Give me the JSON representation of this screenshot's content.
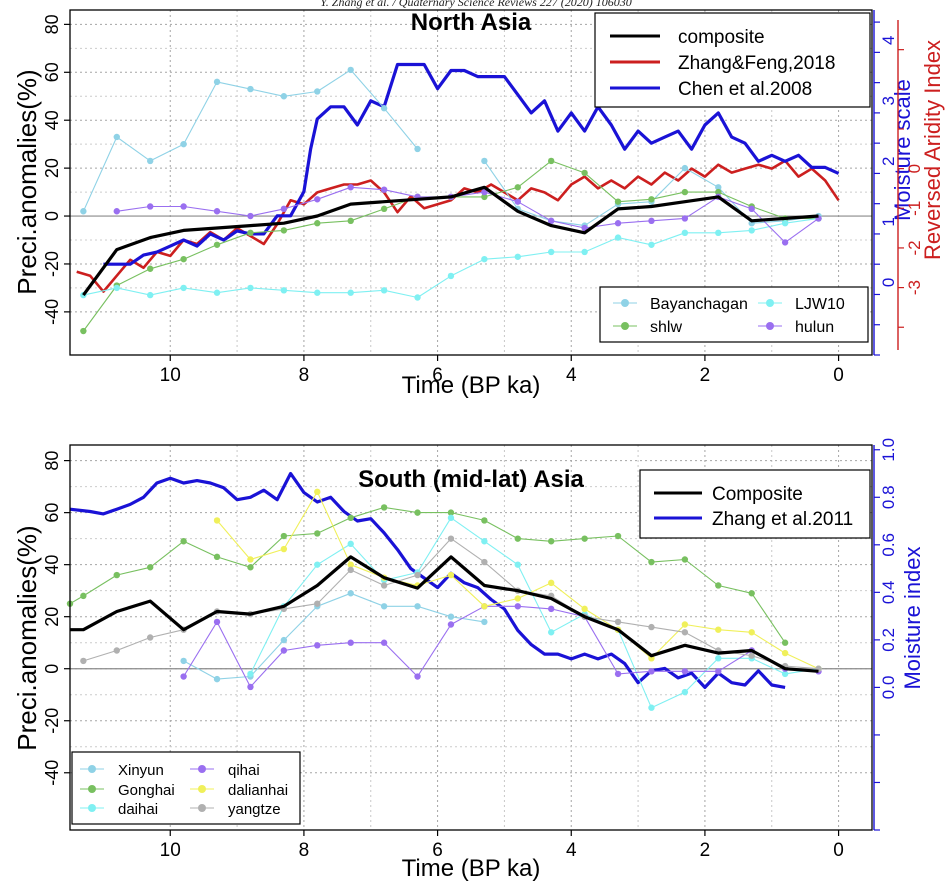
{
  "header": {
    "running_head": "Y. Zhang et al. / Quaternary Science Reviews 227 (2020) 106030"
  },
  "colors": {
    "composite": "#000000",
    "red": "#cc1f1f",
    "blue": "#1a12d6",
    "grid": "#9a9a9a",
    "Bayanchagan": "#8fd2e6",
    "shlw": "#78c060",
    "LJW10": "#7ff0f2",
    "hulun": "#9a6ff0",
    "Xinyun": "#8fd2e6",
    "Gonghai": "#78c060",
    "daihai": "#7ff0f2",
    "qihai": "#9a6ff0",
    "dalianhai": "#f0f05a",
    "yangtze": "#b0b0b0"
  },
  "chart_data": [
    {
      "type": "line",
      "title": "North Asia",
      "xlabel": "Time (BP ka)",
      "ylabel": "Preci.anomalies(%)",
      "xlim": [
        11.5,
        -0.5
      ],
      "ylim": [
        -58,
        86
      ],
      "xticks": [
        10,
        8,
        6,
        4,
        2,
        0
      ],
      "yticks": [
        -40,
        -20,
        0,
        20,
        40,
        60,
        80
      ],
      "grid": true,
      "y2_blue": {
        "label": "Moisture scale",
        "ylim": [
          -1.2,
          4.5
        ],
        "ticks": [
          0,
          1,
          2,
          3,
          4
        ]
      },
      "y2_red": {
        "label": "Reversed Aridity Index",
        "ylim": [
          -4.7,
          4.0
        ],
        "ticks": [
          -3,
          -2,
          -1,
          0
        ]
      },
      "legend_main": {
        "position": "top-right",
        "entries": [
          "composite",
          "Zhang&Feng,2018",
          "Chen et al.2008"
        ]
      },
      "legend_sites": {
        "position": "bottom-right",
        "entries": [
          "Bayanchagan",
          "shlw",
          "LJW10",
          "hulun"
        ]
      },
      "series": [
        {
          "name": "composite",
          "color": "#000000",
          "width": 3.2,
          "x": [
            11.3,
            10.8,
            10.3,
            9.8,
            9.3,
            8.8,
            8.3,
            7.8,
            7.3,
            6.8,
            6.3,
            5.8,
            5.3,
            4.8,
            4.3,
            3.8,
            3.3,
            2.8,
            2.3,
            1.8,
            1.3,
            0.8,
            0.3
          ],
          "y": [
            -33,
            -14,
            -9,
            -6,
            -5,
            -4,
            -3,
            0,
            5,
            6,
            7,
            8,
            12,
            2,
            -4,
            -7,
            3,
            4,
            6,
            8,
            -2,
            -1,
            0
          ]
        },
        {
          "name": "Zhang&Feng,2018",
          "axis": "red",
          "color": "#cc1f1f",
          "width": 2.6,
          "x": [
            11.4,
            11.2,
            11.0,
            10.8,
            10.6,
            10.4,
            10.2,
            10.0,
            9.8,
            9.6,
            9.4,
            9.2,
            9.0,
            8.8,
            8.6,
            8.4,
            8.2,
            8.0,
            7.8,
            7.6,
            7.4,
            7.2,
            7.0,
            6.8,
            6.6,
            6.4,
            6.2,
            6.0,
            5.8,
            5.6,
            5.4,
            5.2,
            5.0,
            4.8,
            4.6,
            4.4,
            4.2,
            4.0,
            3.8,
            3.6,
            3.4,
            3.2,
            3.0,
            2.8,
            2.6,
            2.4,
            2.2,
            2.0,
            1.8,
            1.6,
            1.4,
            1.2,
            1.0,
            0.8,
            0.6,
            0.4,
            0.2,
            0.0
          ],
          "y": [
            -2.6,
            -2.7,
            -3.1,
            -2.7,
            -2.3,
            -2.5,
            -2.1,
            -2.2,
            -1.8,
            -1.9,
            -1.6,
            -1.8,
            -1.5,
            -1.7,
            -1.9,
            -1.4,
            -0.8,
            -0.9,
            -0.6,
            -0.5,
            -0.4,
            -0.4,
            -0.3,
            -0.6,
            -1.1,
            -0.7,
            -1.0,
            -0.9,
            -0.8,
            -0.5,
            -0.6,
            -0.4,
            -0.6,
            -0.8,
            -0.5,
            -0.6,
            -0.8,
            -0.4,
            -0.2,
            -0.5,
            -0.3,
            -0.5,
            -0.2,
            -0.4,
            -0.1,
            -0.3,
            0.0,
            -0.2,
            0.1,
            -0.1,
            0.0,
            0.1,
            0.0,
            0.2,
            -0.2,
            0.0,
            -0.3,
            -0.8
          ]
        },
        {
          "name": "Chen et al.2008",
          "axis": "blue",
          "color": "#1a12d6",
          "width": 3.2,
          "x": [
            11.0,
            10.8,
            10.6,
            10.4,
            10.2,
            10.0,
            9.8,
            9.6,
            9.4,
            9.2,
            9.0,
            8.8,
            8.6,
            8.4,
            8.2,
            8.0,
            7.9,
            7.8,
            7.6,
            7.4,
            7.2,
            7.0,
            6.8,
            6.6,
            6.4,
            6.2,
            6.0,
            5.8,
            5.6,
            5.4,
            5.2,
            5.0,
            4.8,
            4.6,
            4.4,
            4.2,
            4.0,
            3.8,
            3.6,
            3.4,
            3.2,
            3.0,
            2.8,
            2.6,
            2.4,
            2.2,
            2.0,
            1.8,
            1.6,
            1.4,
            1.2,
            1.0,
            0.8,
            0.6,
            0.4,
            0.2,
            0.0
          ],
          "y": [
            0.3,
            0.3,
            0.3,
            0.45,
            0.5,
            0.6,
            0.7,
            0.6,
            0.8,
            0.7,
            0.85,
            0.8,
            0.8,
            1.1,
            1.1,
            1.5,
            2.2,
            2.7,
            2.9,
            2.9,
            2.6,
            3.0,
            2.9,
            3.6,
            3.6,
            3.6,
            3.2,
            3.5,
            3.5,
            3.4,
            3.4,
            3.4,
            3.1,
            2.8,
            3.0,
            2.5,
            2.8,
            2.5,
            2.9,
            2.6,
            2.2,
            2.5,
            2.3,
            2.4,
            2.5,
            2.2,
            2.6,
            2.8,
            2.4,
            2.3,
            2.0,
            2.1,
            2.0,
            2.1,
            1.9,
            1.9,
            1.8
          ]
        },
        {
          "name": "Bayanchagan",
          "color": "#8fd2e6",
          "marker": true,
          "x": [
            11.3,
            10.8,
            10.3,
            9.8,
            9.3,
            8.8,
            8.3,
            7.8,
            7.3,
            6.8,
            6.3
          ],
          "y": [
            2,
            33,
            23,
            30,
            56,
            53,
            50,
            52,
            61,
            45,
            28
          ]
        },
        {
          "name": "Bayanchagan-late",
          "color": "#8fd2e6",
          "marker": true,
          "x": [
            5.3,
            4.8,
            4.3,
            3.8,
            3.3,
            2.8,
            2.3,
            1.8,
            1.3,
            0.8,
            0.3
          ],
          "y": [
            23,
            3,
            -2,
            -4,
            5,
            6,
            20,
            12,
            -3,
            -2,
            0
          ]
        },
        {
          "name": "shlw",
          "color": "#78c060",
          "marker": true,
          "x": [
            11.3,
            10.8,
            10.3,
            9.8,
            9.3,
            8.8,
            8.3,
            7.8,
            7.3,
            6.8,
            6.3,
            5.8,
            5.3,
            4.8,
            4.3,
            3.8,
            3.3,
            2.8,
            2.3,
            1.8,
            1.3,
            0.8,
            0.3
          ],
          "y": [
            -48,
            -29,
            -22,
            -18,
            -12,
            -7,
            -6,
            -3,
            -2,
            3,
            8,
            8,
            8,
            12,
            23,
            18,
            6,
            7,
            10,
            10,
            4,
            -1,
            -1
          ]
        },
        {
          "name": "LJW10",
          "color": "#7ff0f2",
          "marker": true,
          "x": [
            11.3,
            10.8,
            10.3,
            9.8,
            9.3,
            8.8,
            8.3,
            7.8,
            7.3,
            6.8,
            6.3,
            5.8,
            5.3,
            4.8,
            4.3,
            3.8,
            3.3,
            2.8,
            2.3,
            1.8,
            1.3,
            0.8,
            0.3
          ],
          "y": [
            -33,
            -30,
            -33,
            -30,
            -32,
            -30,
            -31,
            -32,
            -32,
            -31,
            -34,
            -25,
            -18,
            -17,
            -15,
            -15,
            -9,
            -12,
            -7,
            -7,
            -6,
            -3,
            -1
          ]
        },
        {
          "name": "hulun",
          "color": "#9a6ff0",
          "marker": true,
          "x": [
            10.8,
            10.3,
            9.8,
            9.3,
            8.8,
            8.3,
            7.8,
            7.3,
            6.8,
            6.3,
            5.8,
            5.3,
            4.8,
            4.3,
            3.8,
            3.3,
            2.8,
            2.3,
            1.8,
            1.3,
            0.8,
            0.3
          ],
          "y": [
            2,
            4,
            4,
            2,
            0,
            3,
            7,
            12,
            11,
            8,
            8,
            10,
            6,
            -2,
            -5,
            -3,
            -2,
            -1,
            8,
            3,
            -11,
            -1
          ]
        }
      ]
    },
    {
      "type": "line",
      "title": "South (mid-lat) Asia",
      "xlabel": "Time (BP ka)",
      "ylabel": "Preci.anomalies(%)",
      "xlim": [
        11.5,
        -0.5
      ],
      "ylim": [
        -62,
        86
      ],
      "xticks": [
        10,
        8,
        6,
        4,
        2,
        0
      ],
      "yticks": [
        -40,
        -20,
        0,
        20,
        40,
        60,
        80
      ],
      "grid": true,
      "y2_blue": {
        "label": "Moisture index",
        "ylim": [
          -0.6,
          1.02
        ],
        "ticks": [
          0.0,
          0.2,
          0.4,
          0.6,
          0.8,
          1.0
        ]
      },
      "legend_main": {
        "position": "top-right",
        "entries": [
          "Composite",
          "Zhang et al.2011"
        ]
      },
      "legend_sites": {
        "position": "bottom-left",
        "entries": [
          "Xinyun",
          "Gonghai",
          "daihai",
          "qihai",
          "dalianhai",
          "yangtze"
        ]
      },
      "series": [
        {
          "name": "Composite",
          "color": "#000000",
          "width": 3.2,
          "x": [
            11.5,
            11.3,
            10.8,
            10.3,
            9.8,
            9.3,
            8.8,
            8.3,
            7.8,
            7.3,
            6.8,
            6.3,
            5.8,
            5.3,
            4.8,
            4.3,
            3.8,
            3.3,
            2.8,
            2.3,
            1.8,
            1.3,
            0.8,
            0.3
          ],
          "y": [
            15,
            15,
            22,
            26,
            15,
            22,
            21,
            24,
            32,
            43,
            35,
            31,
            43,
            32,
            30,
            27,
            20,
            15,
            5,
            9,
            6,
            7,
            0,
            -1
          ]
        },
        {
          "name": "Zhang et al.2011",
          "axis": "blue",
          "color": "#1a12d6",
          "width": 3.2,
          "x": [
            11.5,
            11.2,
            11.0,
            10.8,
            10.6,
            10.4,
            10.2,
            10.0,
            9.8,
            9.6,
            9.4,
            9.2,
            9.0,
            8.8,
            8.6,
            8.4,
            8.2,
            8.0,
            7.8,
            7.6,
            7.4,
            7.2,
            7.0,
            6.8,
            6.6,
            6.4,
            6.2,
            6.0,
            5.8,
            5.6,
            5.4,
            5.2,
            5.0,
            4.8,
            4.6,
            4.4,
            4.2,
            4.0,
            3.8,
            3.6,
            3.4,
            3.2,
            3.0,
            2.8,
            2.6,
            2.4,
            2.2,
            2.0,
            1.8,
            1.6,
            1.4,
            1.2,
            1.0,
            0.8
          ],
          "y": [
            0.75,
            0.74,
            0.73,
            0.75,
            0.77,
            0.8,
            0.86,
            0.88,
            0.86,
            0.87,
            0.86,
            0.84,
            0.79,
            0.8,
            0.83,
            0.79,
            0.9,
            0.82,
            0.78,
            0.8,
            0.74,
            0.7,
            0.71,
            0.65,
            0.58,
            0.5,
            0.46,
            0.42,
            0.48,
            0.44,
            0.42,
            0.37,
            0.33,
            0.24,
            0.18,
            0.14,
            0.14,
            0.12,
            0.14,
            0.12,
            0.14,
            0.1,
            0.02,
            0.07,
            0.08,
            0.04,
            0.06,
            0.0,
            0.06,
            0.02,
            0.01,
            0.07,
            0.01,
            0.0
          ]
        },
        {
          "name": "Xinyun",
          "color": "#8fd2e6",
          "marker": true,
          "x": [
            9.8,
            9.3,
            8.8,
            8.3,
            7.8,
            7.3,
            6.8,
            6.3,
            5.8,
            5.3
          ],
          "y": [
            3,
            -4,
            -3,
            11,
            24,
            29,
            24,
            24,
            20,
            18
          ]
        },
        {
          "name": "Gonghai",
          "color": "#78c060",
          "marker": true,
          "x": [
            11.5,
            11.3,
            10.8,
            10.3,
            9.8,
            9.3,
            8.8,
            8.3,
            7.8,
            7.3,
            6.8,
            6.3,
            5.8,
            5.3,
            4.8,
            4.3,
            3.8,
            3.3,
            2.8,
            2.3,
            1.8,
            1.3,
            0.8
          ],
          "y": [
            25,
            28,
            36,
            39,
            49,
            43,
            39,
            51,
            52,
            58,
            62,
            60,
            60,
            57,
            50,
            49,
            50,
            51,
            41,
            42,
            32,
            29,
            10
          ]
        },
        {
          "name": "daihai",
          "color": "#7ff0f2",
          "marker": true,
          "x": [
            8.8,
            8.3,
            7.8,
            7.3,
            6.8,
            6.3,
            5.8,
            5.3,
            4.8,
            4.3,
            3.8,
            3.3,
            2.8,
            2.3,
            1.8,
            1.3,
            0.8,
            0.3
          ],
          "y": [
            -2,
            24,
            40,
            48,
            34,
            37,
            58,
            49,
            40,
            14,
            21,
            15,
            -15,
            -9,
            4,
            4,
            -2,
            0
          ]
        },
        {
          "name": "qihai",
          "color": "#9a6ff0",
          "marker": true,
          "x": [
            9.8,
            9.3,
            8.8,
            8.3,
            7.8,
            7.3,
            6.8,
            6.3,
            5.8,
            5.3,
            4.8,
            4.3,
            3.8,
            3.3,
            2.8,
            2.3,
            1.8,
            1.3,
            0.8,
            0.3
          ],
          "y": [
            -3,
            18,
            -7,
            7,
            9,
            10,
            10,
            -3,
            17,
            24,
            24,
            23,
            20,
            -2,
            -1,
            -1,
            -1,
            7,
            0,
            -1
          ]
        },
        {
          "name": "dalianhai",
          "color": "#f0f05a",
          "marker": true,
          "x": [
            9.3,
            8.8,
            8.3,
            7.8,
            7.3,
            6.8,
            6.3,
            5.8,
            5.3,
            4.8,
            4.3,
            3.8,
            3.3,
            2.8,
            2.3,
            1.8,
            1.3,
            0.8,
            0.3
          ],
          "y": [
            57,
            42,
            46,
            68,
            40,
            35,
            32,
            36,
            24,
            27,
            33,
            23,
            15,
            4,
            17,
            15,
            14,
            6,
            0
          ]
        },
        {
          "name": "yangtze",
          "color": "#b0b0b0",
          "marker": true,
          "x": [
            11.3,
            10.8,
            10.3,
            9.8,
            9.3,
            8.8,
            8.3,
            7.8,
            7.3,
            6.8,
            6.3,
            5.8,
            5.3,
            4.8,
            4.3,
            3.8,
            3.3,
            2.8,
            2.3,
            1.8,
            1.3,
            0.8,
            0.3
          ],
          "y": [
            3,
            7,
            12,
            15,
            22,
            21,
            23,
            25,
            38,
            32,
            36,
            50,
            41,
            30,
            28,
            20,
            18,
            16,
            14,
            7,
            5,
            1,
            0
          ]
        }
      ]
    }
  ]
}
